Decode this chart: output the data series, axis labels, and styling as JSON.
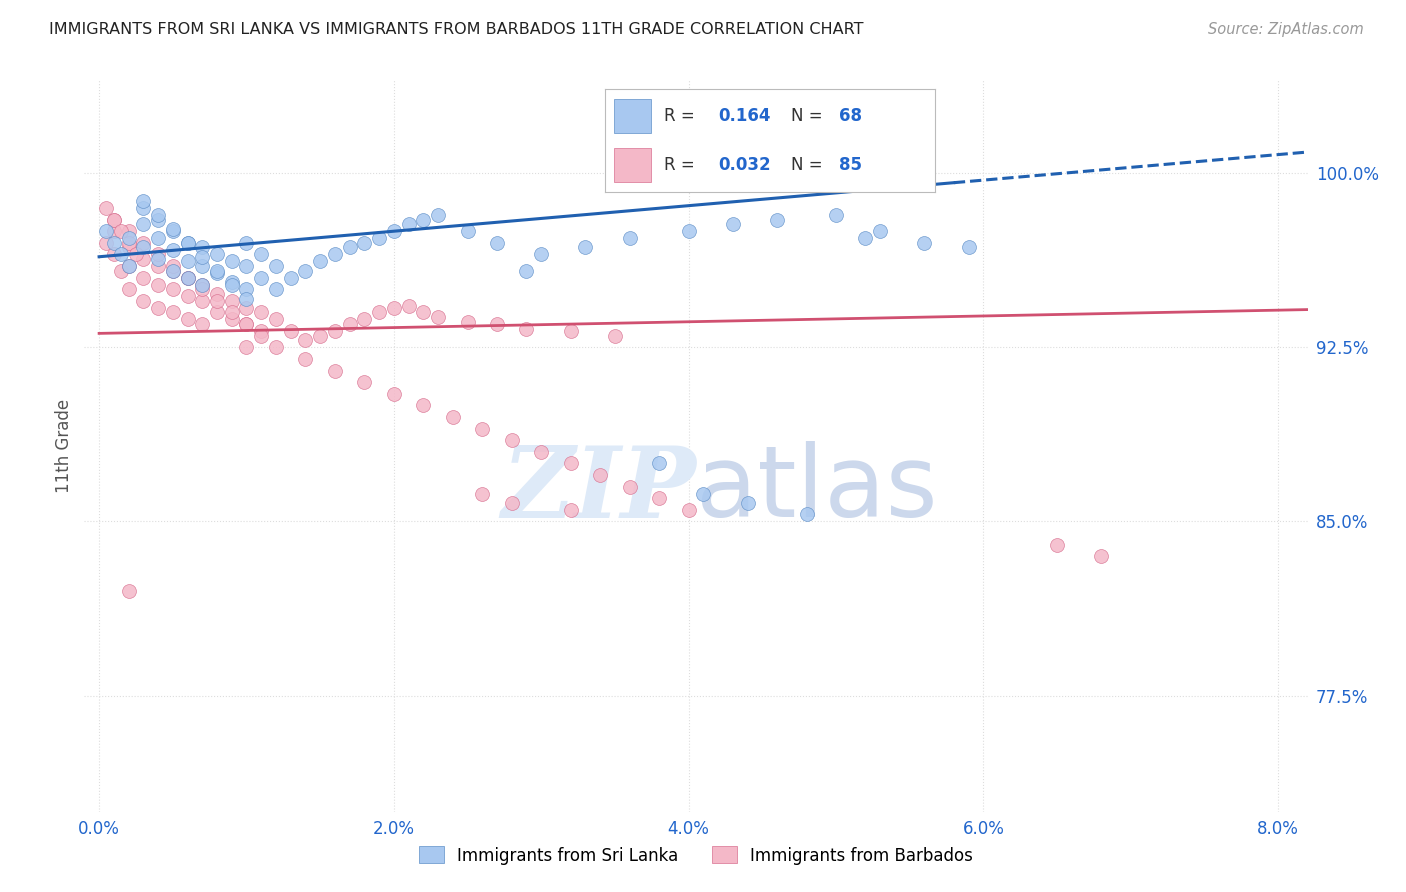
{
  "title": "IMMIGRANTS FROM SRI LANKA VS IMMIGRANTS FROM BARBADOS 11TH GRADE CORRELATION CHART",
  "source": "Source: ZipAtlas.com",
  "ylabel": "11th Grade",
  "yaxis_labels": [
    "77.5%",
    "85.0%",
    "92.5%",
    "100.0%"
  ],
  "yaxis_values": [
    0.775,
    0.85,
    0.925,
    1.0
  ],
  "xaxis_labels": [
    "0.0%",
    "2.0%",
    "4.0%",
    "6.0%",
    "8.0%"
  ],
  "xaxis_values": [
    0.0,
    0.02,
    0.04,
    0.06,
    0.08
  ],
  "xlim": [
    -0.001,
    0.082
  ],
  "ylim": [
    0.725,
    1.04
  ],
  "legend_r1": "R = 0.164",
  "legend_n1": "N = 68",
  "legend_r2": "R = 0.032",
  "legend_n2": "N = 85",
  "color_sri_lanka_fill": "#a8c8f0",
  "color_sri_lanka_edge": "#6090c8",
  "color_barbados_fill": "#f4b8c8",
  "color_barbados_edge": "#d87090",
  "color_line_sri_lanka": "#2060b0",
  "color_line_barbados": "#d05070",
  "color_axis_blue": "#2266cc",
  "color_grid": "#dddddd",
  "sri_lanka_x": [
    0.0005,
    0.001,
    0.0015,
    0.002,
    0.002,
    0.003,
    0.003,
    0.003,
    0.004,
    0.004,
    0.004,
    0.005,
    0.005,
    0.005,
    0.006,
    0.006,
    0.006,
    0.007,
    0.007,
    0.007,
    0.008,
    0.008,
    0.009,
    0.009,
    0.01,
    0.01,
    0.01,
    0.011,
    0.011,
    0.012,
    0.012,
    0.013,
    0.014,
    0.015,
    0.016,
    0.017,
    0.018,
    0.019,
    0.02,
    0.021,
    0.022,
    0.023,
    0.025,
    0.027,
    0.03,
    0.033,
    0.036,
    0.04,
    0.043,
    0.046,
    0.05,
    0.053,
    0.056,
    0.059,
    0.038,
    0.041,
    0.044,
    0.048,
    0.003,
    0.004,
    0.005,
    0.006,
    0.007,
    0.008,
    0.009,
    0.01,
    0.052,
    0.029
  ],
  "sri_lanka_y": [
    0.975,
    0.97,
    0.965,
    0.972,
    0.96,
    0.985,
    0.978,
    0.968,
    0.98,
    0.972,
    0.963,
    0.975,
    0.967,
    0.958,
    0.97,
    0.962,
    0.955,
    0.968,
    0.96,
    0.952,
    0.965,
    0.957,
    0.962,
    0.953,
    0.97,
    0.96,
    0.95,
    0.965,
    0.955,
    0.96,
    0.95,
    0.955,
    0.958,
    0.962,
    0.965,
    0.968,
    0.97,
    0.972,
    0.975,
    0.978,
    0.98,
    0.982,
    0.975,
    0.97,
    0.965,
    0.968,
    0.972,
    0.975,
    0.978,
    0.98,
    0.982,
    0.975,
    0.97,
    0.968,
    0.875,
    0.862,
    0.858,
    0.853,
    0.988,
    0.982,
    0.976,
    0.97,
    0.964,
    0.958,
    0.952,
    0.946,
    0.972,
    0.958
  ],
  "barbados_x": [
    0.0005,
    0.001,
    0.001,
    0.0015,
    0.002,
    0.002,
    0.002,
    0.003,
    0.003,
    0.003,
    0.004,
    0.004,
    0.004,
    0.005,
    0.005,
    0.005,
    0.006,
    0.006,
    0.006,
    0.007,
    0.007,
    0.007,
    0.008,
    0.008,
    0.009,
    0.009,
    0.01,
    0.01,
    0.01,
    0.011,
    0.011,
    0.012,
    0.013,
    0.014,
    0.015,
    0.016,
    0.017,
    0.018,
    0.019,
    0.02,
    0.021,
    0.022,
    0.023,
    0.025,
    0.027,
    0.029,
    0.032,
    0.035,
    0.001,
    0.002,
    0.003,
    0.004,
    0.005,
    0.006,
    0.007,
    0.008,
    0.009,
    0.01,
    0.011,
    0.012,
    0.014,
    0.016,
    0.018,
    0.02,
    0.022,
    0.024,
    0.026,
    0.028,
    0.03,
    0.032,
    0.034,
    0.036,
    0.038,
    0.04,
    0.0005,
    0.001,
    0.0015,
    0.002,
    0.0025,
    0.026,
    0.028,
    0.032,
    0.065,
    0.068,
    0.002
  ],
  "barbados_y": [
    0.97,
    0.975,
    0.965,
    0.958,
    0.968,
    0.96,
    0.95,
    0.963,
    0.955,
    0.945,
    0.96,
    0.952,
    0.942,
    0.958,
    0.95,
    0.94,
    0.955,
    0.947,
    0.937,
    0.952,
    0.945,
    0.935,
    0.948,
    0.94,
    0.945,
    0.937,
    0.942,
    0.935,
    0.925,
    0.94,
    0.932,
    0.937,
    0.932,
    0.928,
    0.93,
    0.932,
    0.935,
    0.937,
    0.94,
    0.942,
    0.943,
    0.94,
    0.938,
    0.936,
    0.935,
    0.933,
    0.932,
    0.93,
    0.98,
    0.975,
    0.97,
    0.965,
    0.96,
    0.955,
    0.95,
    0.945,
    0.94,
    0.935,
    0.93,
    0.925,
    0.92,
    0.915,
    0.91,
    0.905,
    0.9,
    0.895,
    0.89,
    0.885,
    0.88,
    0.875,
    0.87,
    0.865,
    0.86,
    0.855,
    0.985,
    0.98,
    0.975,
    0.97,
    0.965,
    0.862,
    0.858,
    0.855,
    0.84,
    0.835,
    0.82
  ]
}
